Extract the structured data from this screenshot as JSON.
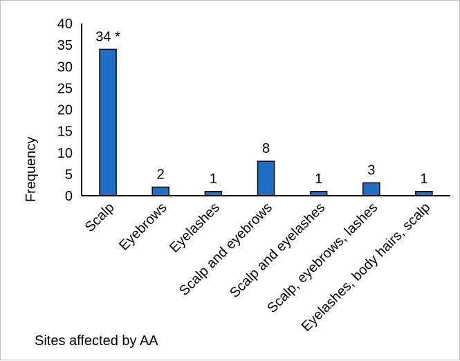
{
  "chart_data": {
    "type": "bar",
    "categories": [
      "Scalp",
      "Eyebrows",
      "Eyelashes",
      "Scalp and eyebrows",
      "Scalp and eyelashes",
      "Scalp, eyebrows, lashes",
      "Eyelashes, body hairs, scalp"
    ],
    "values": [
      34,
      2,
      1,
      8,
      1,
      3,
      1
    ],
    "data_labels": [
      "34 *",
      "2",
      "1",
      "8",
      "1",
      "3",
      "1"
    ],
    "xlabel": "Sites affected by AA",
    "ylabel": "Frequency",
    "ylim": [
      0,
      40
    ],
    "yticks": [
      0,
      5,
      10,
      15,
      20,
      25,
      30,
      35,
      40
    ],
    "grid": false,
    "legend": "none",
    "colors": {
      "bar_fill": "#1f6fc6",
      "bar_stroke": "#000000",
      "axis": "#000000",
      "frame": "#bfbfbf"
    }
  }
}
